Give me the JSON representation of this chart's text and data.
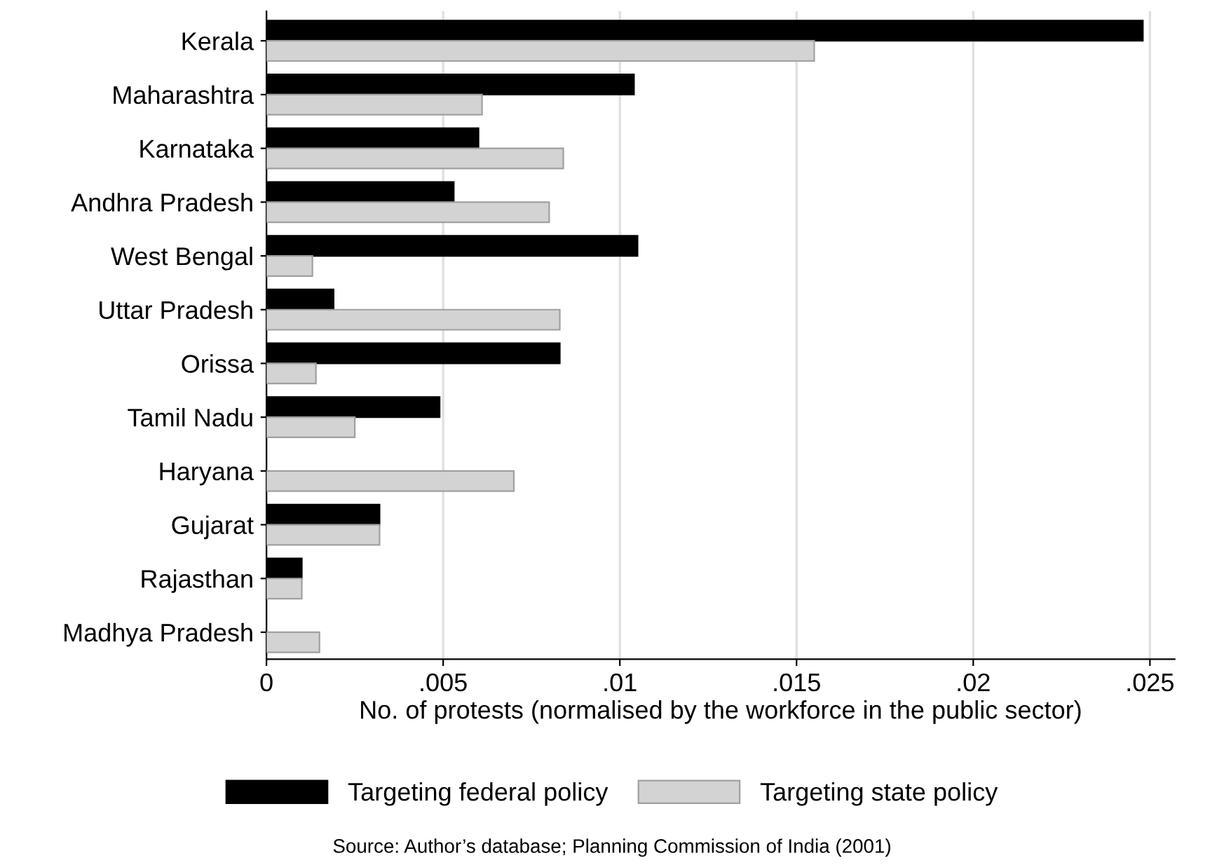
{
  "chart_data": {
    "type": "bar",
    "orientation": "horizontal",
    "categories": [
      "Kerala",
      "Maharashtra",
      "Karnataka",
      "Andhra Pradesh",
      "West Bengal",
      "Uttar Pradesh",
      "Orissa",
      "Tamil Nadu",
      "Haryana",
      "Gujarat",
      "Rajasthan",
      "Madhya Pradesh"
    ],
    "series": [
      {
        "name": "Targeting federal policy",
        "color": "#000000",
        "values": [
          0.0248,
          0.0104,
          0.006,
          0.0053,
          0.0105,
          0.0019,
          0.0083,
          0.0049,
          null,
          0.0032,
          0.001,
          null
        ]
      },
      {
        "name": "Targeting state policy",
        "color": "#d3d3d3",
        "values": [
          0.0155,
          0.0061,
          0.0084,
          0.008,
          0.0013,
          0.0083,
          0.0014,
          0.0025,
          0.007,
          0.0032,
          0.001,
          0.0015
        ]
      }
    ],
    "xlim": [
      0,
      0.0257
    ],
    "xticks": [
      {
        "value": 0,
        "label": "0"
      },
      {
        "value": 0.005,
        "label": ".005"
      },
      {
        "value": 0.01,
        "label": ".01"
      },
      {
        "value": 0.015,
        "label": ".015"
      },
      {
        "value": 0.02,
        "label": ".02"
      },
      {
        "value": 0.025,
        "label": ".025"
      }
    ],
    "xlabel": "No. of protests (normalised by the workforce in the public sector)",
    "grid": "x",
    "legend": "bottom",
    "annotations": [
      "Source: Author’s database; Planning Commission of India (2001)"
    ]
  }
}
